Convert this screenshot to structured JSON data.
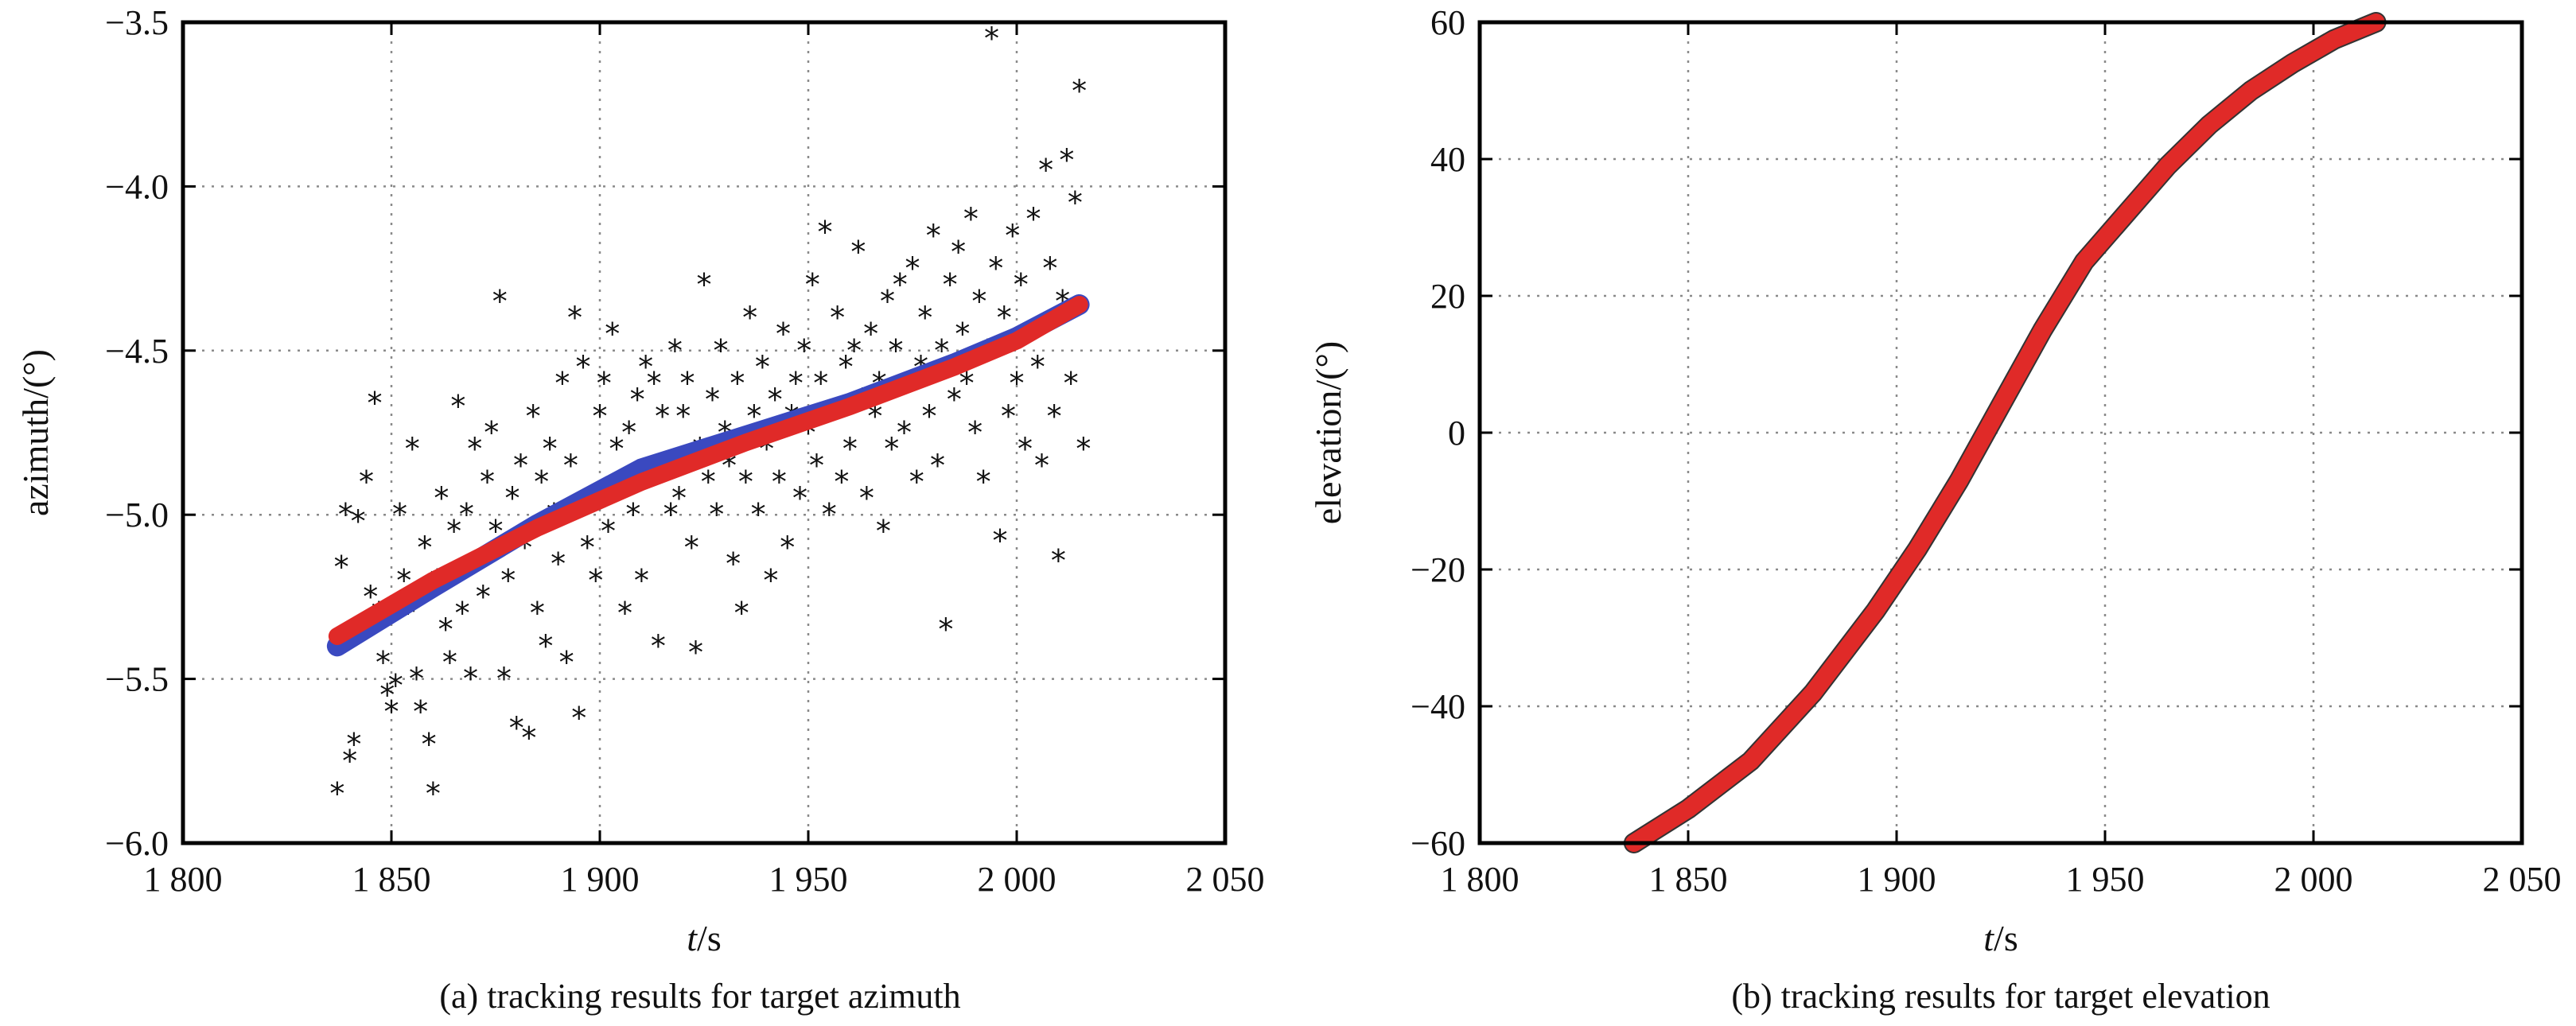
{
  "chart_data": [
    {
      "id": "a",
      "type": "scatter",
      "caption": "(a) tracking results for target azimuth",
      "xlabel_italic": "t",
      "xlabel_unit": "/s",
      "ylabel": "azimuth/(°)",
      "xlim": [
        1800,
        2050
      ],
      "ylim": [
        -6.0,
        -3.5
      ],
      "x_ticks": [
        1800,
        1850,
        1900,
        1950,
        2000,
        2050
      ],
      "x_tick_labels": [
        "1 800",
        "1 850",
        "1 900",
        "1 950",
        "2 000",
        "2 050"
      ],
      "y_ticks": [
        -6.0,
        -5.5,
        -5.0,
        -4.5,
        -4.0,
        -3.5
      ],
      "y_tick_labels": [
        "−6.0",
        "−5.5",
        "−5.0",
        "−4.5",
        "−4.0",
        "−3.5"
      ],
      "grid": true,
      "series": [
        {
          "type": "scatter",
          "marker": "*",
          "color": "#111111",
          "points": [
            [
              1837,
              -5.85
            ],
            [
              1838,
              -5.16
            ],
            [
              1839,
              -5.0
            ],
            [
              1840,
              -5.75
            ],
            [
              1841,
              -5.7
            ],
            [
              1842,
              -5.02
            ],
            [
              1843,
              -5.35
            ],
            [
              1844,
              -4.9
            ],
            [
              1845,
              -5.25
            ],
            [
              1846,
              -4.66
            ],
            [
              1847,
              -5.3
            ],
            [
              1848,
              -5.45
            ],
            [
              1849,
              -5.55
            ],
            [
              1850,
              -5.6
            ],
            [
              1851,
              -5.52
            ],
            [
              1852,
              -5.0
            ],
            [
              1853,
              -5.2
            ],
            [
              1854,
              -5.3
            ],
            [
              1855,
              -4.8
            ],
            [
              1856,
              -5.5
            ],
            [
              1857,
              -5.6
            ],
            [
              1858,
              -5.1
            ],
            [
              1859,
              -5.7
            ],
            [
              1860,
              -5.85
            ],
            [
              1861,
              -5.2
            ],
            [
              1862,
              -4.95
            ],
            [
              1863,
              -5.35
            ],
            [
              1864,
              -5.45
            ],
            [
              1865,
              -5.05
            ],
            [
              1866,
              -4.67
            ],
            [
              1867,
              -5.3
            ],
            [
              1868,
              -5.0
            ],
            [
              1869,
              -5.5
            ],
            [
              1870,
              -4.8
            ],
            [
              1871,
              -5.15
            ],
            [
              1872,
              -5.25
            ],
            [
              1873,
              -4.9
            ],
            [
              1874,
              -4.75
            ],
            [
              1875,
              -5.05
            ],
            [
              1876,
              -4.35
            ],
            [
              1877,
              -5.5
            ],
            [
              1878,
              -5.2
            ],
            [
              1879,
              -4.95
            ],
            [
              1880,
              -5.65
            ],
            [
              1881,
              -4.85
            ],
            [
              1882,
              -5.1
            ],
            [
              1883,
              -5.68
            ],
            [
              1884,
              -4.7
            ],
            [
              1885,
              -5.3
            ],
            [
              1886,
              -4.9
            ],
            [
              1887,
              -5.4
            ],
            [
              1888,
              -4.8
            ],
            [
              1889,
              -5.0
            ],
            [
              1890,
              -5.15
            ],
            [
              1891,
              -4.6
            ],
            [
              1892,
              -5.45
            ],
            [
              1893,
              -4.85
            ],
            [
              1894,
              -4.4
            ],
            [
              1895,
              -5.62
            ],
            [
              1896,
              -4.55
            ],
            [
              1897,
              -5.1
            ],
            [
              1898,
              -4.95
            ],
            [
              1899,
              -5.2
            ],
            [
              1900,
              -4.7
            ],
            [
              1901,
              -4.6
            ],
            [
              1902,
              -5.05
            ],
            [
              1903,
              -4.45
            ],
            [
              1904,
              -4.8
            ],
            [
              1905,
              -4.9
            ],
            [
              1906,
              -5.3
            ],
            [
              1907,
              -4.75
            ],
            [
              1908,
              -5.0
            ],
            [
              1909,
              -4.65
            ],
            [
              1910,
              -5.2
            ],
            [
              1911,
              -4.55
            ],
            [
              1912,
              -4.9
            ],
            [
              1913,
              -4.6
            ],
            [
              1914,
              -5.4
            ],
            [
              1915,
              -4.7
            ],
            [
              1916,
              -4.85
            ],
            [
              1917,
              -5.0
            ],
            [
              1918,
              -4.5
            ],
            [
              1919,
              -4.95
            ],
            [
              1920,
              -4.7
            ],
            [
              1921,
              -4.6
            ],
            [
              1922,
              -5.1
            ],
            [
              1923,
              -5.42
            ],
            [
              1924,
              -4.8
            ],
            [
              1925,
              -4.3
            ],
            [
              1926,
              -4.9
            ],
            [
              1927,
              -4.65
            ],
            [
              1928,
              -5.0
            ],
            [
              1929,
              -4.5
            ],
            [
              1930,
              -4.75
            ],
            [
              1931,
              -4.85
            ],
            [
              1932,
              -5.15
            ],
            [
              1933,
              -4.6
            ],
            [
              1934,
              -5.3
            ],
            [
              1935,
              -4.9
            ],
            [
              1936,
              -4.4
            ],
            [
              1937,
              -4.7
            ],
            [
              1938,
              -5.0
            ],
            [
              1939,
              -4.55
            ],
            [
              1940,
              -4.8
            ],
            [
              1941,
              -5.2
            ],
            [
              1942,
              -4.65
            ],
            [
              1943,
              -4.9
            ],
            [
              1944,
              -4.45
            ],
            [
              1945,
              -5.1
            ],
            [
              1946,
              -4.7
            ],
            [
              1947,
              -4.6
            ],
            [
              1948,
              -4.95
            ],
            [
              1949,
              -4.5
            ],
            [
              1950,
              -4.75
            ],
            [
              1951,
              -4.3
            ],
            [
              1952,
              -4.85
            ],
            [
              1953,
              -4.6
            ],
            [
              1954,
              -4.14
            ],
            [
              1955,
              -5.0
            ],
            [
              1956,
              -4.7
            ],
            [
              1957,
              -4.4
            ],
            [
              1958,
              -4.9
            ],
            [
              1959,
              -4.55
            ],
            [
              1960,
              -4.8
            ],
            [
              1961,
              -4.5
            ],
            [
              1962,
              -4.2
            ],
            [
              1963,
              -4.65
            ],
            [
              1964,
              -4.95
            ],
            [
              1965,
              -4.45
            ],
            [
              1966,
              -4.7
            ],
            [
              1967,
              -4.6
            ],
            [
              1968,
              -5.05
            ],
            [
              1969,
              -4.35
            ],
            [
              1970,
              -4.8
            ],
            [
              1971,
              -4.5
            ],
            [
              1972,
              -4.3
            ],
            [
              1973,
              -4.75
            ],
            [
              1974,
              -4.6
            ],
            [
              1975,
              -4.25
            ],
            [
              1976,
              -4.9
            ],
            [
              1977,
              -4.55
            ],
            [
              1978,
              -4.4
            ],
            [
              1979,
              -4.7
            ],
            [
              1980,
              -4.15
            ],
            [
              1981,
              -4.85
            ],
            [
              1982,
              -4.5
            ],
            [
              1983,
              -5.35
            ],
            [
              1984,
              -4.3
            ],
            [
              1985,
              -4.65
            ],
            [
              1986,
              -4.2
            ],
            [
              1987,
              -4.45
            ],
            [
              1988,
              -4.6
            ],
            [
              1989,
              -4.1
            ],
            [
              1990,
              -4.75
            ],
            [
              1991,
              -4.35
            ],
            [
              1992,
              -4.9
            ],
            [
              1993,
              -4.5
            ],
            [
              1994,
              -3.55
            ],
            [
              1995,
              -4.25
            ],
            [
              1996,
              -5.08
            ],
            [
              1997,
              -4.4
            ],
            [
              1998,
              -4.7
            ],
            [
              1999,
              -4.15
            ],
            [
              2000,
              -4.6
            ],
            [
              2001,
              -4.3
            ],
            [
              2002,
              -4.8
            ],
            [
              2003,
              -4.45
            ],
            [
              2004,
              -4.1
            ],
            [
              2005,
              -4.55
            ],
            [
              2006,
              -4.85
            ],
            [
              2007,
              -3.95
            ],
            [
              2008,
              -4.25
            ],
            [
              2009,
              -4.7
            ],
            [
              2010,
              -5.14
            ],
            [
              2011,
              -4.35
            ],
            [
              2012,
              -3.92
            ],
            [
              2013,
              -4.6
            ],
            [
              2014,
              -4.05
            ],
            [
              2015,
              -3.71
            ],
            [
              2016,
              -4.8
            ]
          ]
        },
        {
          "type": "line",
          "color": "#3a49c0",
          "x": [
            1837,
            1860,
            1885,
            1910,
            1935,
            1960,
            1985,
            2000,
            2015
          ],
          "y": [
            -5.4,
            -5.22,
            -5.03,
            -4.86,
            -4.76,
            -4.66,
            -4.54,
            -4.46,
            -4.36
          ]
        },
        {
          "type": "line",
          "color": "#e02a28",
          "x": [
            1837,
            1860,
            1885,
            1910,
            1935,
            1960,
            1985,
            2000,
            2015
          ],
          "y": [
            -5.37,
            -5.2,
            -5.04,
            -4.9,
            -4.78,
            -4.67,
            -4.55,
            -4.47,
            -4.36
          ]
        }
      ]
    },
    {
      "id": "b",
      "type": "line",
      "caption": "(b) tracking results for target elevation",
      "xlabel_italic": "t",
      "xlabel_unit": "/s",
      "ylabel": "elevation/(°)",
      "xlim": [
        1800,
        2050
      ],
      "ylim": [
        -60,
        60
      ],
      "x_ticks": [
        1800,
        1850,
        1900,
        1950,
        2000,
        2050
      ],
      "x_tick_labels": [
        "1 800",
        "1 850",
        "1 900",
        "1 950",
        "2 000",
        "2 050"
      ],
      "y_ticks": [
        -60,
        -40,
        -20,
        0,
        20,
        40,
        60
      ],
      "y_tick_labels": [
        "−60",
        "−40",
        "−20",
        "0",
        "20",
        "40",
        "60"
      ],
      "grid": true,
      "series": [
        {
          "type": "line",
          "color": "#333333",
          "x": [
            1837,
            1850,
            1865,
            1880,
            1895,
            1905,
            1915,
            1925,
            1935,
            1945,
            1955,
            1965,
            1975,
            1985,
            1995,
            2005,
            2015
          ],
          "y": [
            -60,
            -55,
            -48,
            -38,
            -26,
            -17,
            -7,
            4,
            15,
            25,
            32,
            39,
            45,
            50,
            54,
            57.5,
            60
          ]
        },
        {
          "type": "line",
          "color": "#e02a28",
          "x": [
            1837,
            1850,
            1865,
            1880,
            1895,
            1905,
            1915,
            1925,
            1935,
            1945,
            1955,
            1965,
            1975,
            1985,
            1995,
            2005,
            2015
          ],
          "y": [
            -60,
            -55,
            -48,
            -38,
            -26,
            -17,
            -7,
            4,
            15,
            25,
            32,
            39,
            45,
            50,
            54,
            57.5,
            60
          ]
        }
      ]
    }
  ]
}
